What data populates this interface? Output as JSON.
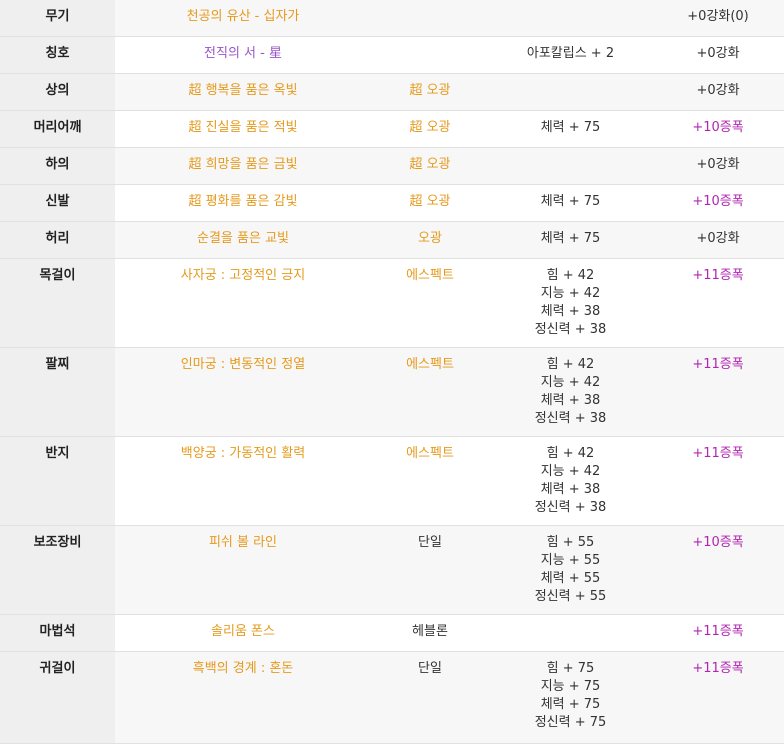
{
  "colors": {
    "name_orange": "#e69a1c",
    "name_purple": "#9955c8",
    "text_dark": "#333333",
    "grade_magenta": "#b325b3"
  },
  "rows": [
    {
      "slot": "무기",
      "name": "천공의 유산 - 십자가",
      "name_color": "orange",
      "set": "",
      "set_color": "dark",
      "stats": [],
      "grade": "+0강화(0)",
      "grade_color": "dark",
      "h": 36
    },
    {
      "slot": "칭호",
      "name": "전직의 서 - 星",
      "name_color": "purple",
      "set": "",
      "set_color": "dark",
      "stats": [
        "아포칼립스 + 2"
      ],
      "grade": "+0강화",
      "grade_color": "dark",
      "h": 37
    },
    {
      "slot": "상의",
      "name": "超 행복을 품은 옥빛",
      "name_color": "orange",
      "set": "超 오광",
      "set_color": "orange",
      "stats": [],
      "grade": "+0강화",
      "grade_color": "dark",
      "h": 37
    },
    {
      "slot": "머리어깨",
      "name": "超 진실을 품은 적빛",
      "name_color": "orange",
      "set": "超 오광",
      "set_color": "orange",
      "stats": [
        "체력 + 75"
      ],
      "grade": "+10증폭",
      "grade_color": "magenta",
      "h": 37
    },
    {
      "slot": "하의",
      "name": "超 희망을 품은 금빛",
      "name_color": "orange",
      "set": "超 오광",
      "set_color": "orange",
      "stats": [],
      "grade": "+0강화",
      "grade_color": "dark",
      "h": 37
    },
    {
      "slot": "신발",
      "name": "超 평화를 품은 감빛",
      "name_color": "orange",
      "set": "超 오광",
      "set_color": "orange",
      "stats": [
        "체력 + 75"
      ],
      "grade": "+10증폭",
      "grade_color": "magenta",
      "h": 37
    },
    {
      "slot": "허리",
      "name": "순결을 품은 교빛",
      "name_color": "orange",
      "set": "오광",
      "set_color": "orange",
      "stats": [
        "체력 + 75"
      ],
      "grade": "+0강화",
      "grade_color": "dark",
      "h": 37
    },
    {
      "slot": "목걸이",
      "name": "사자궁 : 고정적인 긍지",
      "name_color": "orange",
      "set": "에스펙트",
      "set_color": "orange",
      "stats": [
        "힘 + 42",
        "지능 + 42",
        "체력 + 38",
        "정신력 + 38"
      ],
      "grade": "+11증폭",
      "grade_color": "magenta",
      "h": 89
    },
    {
      "slot": "팔찌",
      "name": "인마궁 : 변동적인 정열",
      "name_color": "orange",
      "set": "에스펙트",
      "set_color": "orange",
      "stats": [
        "힘 + 42",
        "지능 + 42",
        "체력 + 38",
        "정신력 + 38"
      ],
      "grade": "+11증폭",
      "grade_color": "magenta",
      "h": 89
    },
    {
      "slot": "반지",
      "name": "백양궁 : 가동적인 활력",
      "name_color": "orange",
      "set": "에스펙트",
      "set_color": "orange",
      "stats": [
        "힘 + 42",
        "지능 + 42",
        "체력 + 38",
        "정신력 + 38"
      ],
      "grade": "+11증폭",
      "grade_color": "magenta",
      "h": 89
    },
    {
      "slot": "보조장비",
      "name": "피쉬 볼 라인",
      "name_color": "orange",
      "set": "단일",
      "set_color": "dark",
      "stats": [
        "힘 + 55",
        "지능 + 55",
        "체력 + 55",
        "정신력 + 55"
      ],
      "grade": "+10증폭",
      "grade_color": "magenta",
      "h": 89
    },
    {
      "slot": "마법석",
      "name": "솔리움 폰스",
      "name_color": "orange",
      "set": "헤블론",
      "set_color": "dark",
      "stats": [],
      "grade": "+11증폭",
      "grade_color": "magenta",
      "h": 37
    },
    {
      "slot": "귀걸이",
      "name": "흑백의 경계 : 혼돈",
      "name_color": "orange",
      "set": "단일",
      "set_color": "dark",
      "stats": [
        "힘 + 75",
        "지능 + 75",
        "체력 + 75",
        "정신력 + 75"
      ],
      "grade": "+11증폭",
      "grade_color": "magenta",
      "h": 92
    }
  ]
}
